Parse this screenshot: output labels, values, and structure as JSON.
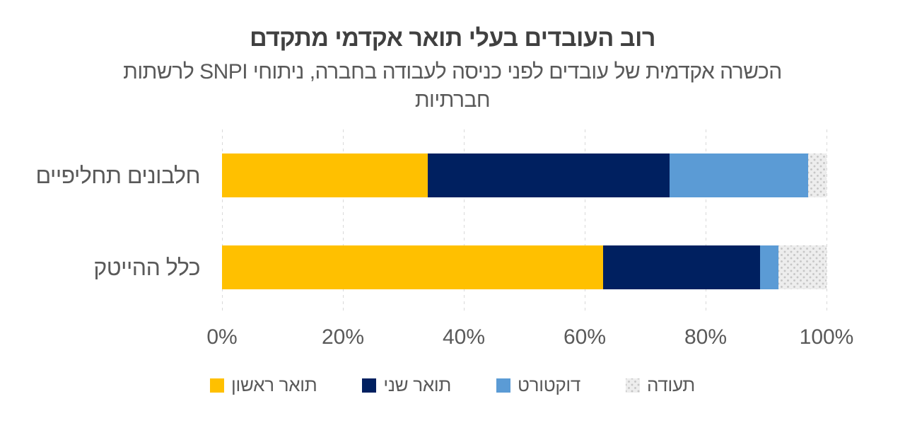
{
  "title": "רוב העובדים בעלי תואר אקדמי מתקדם",
  "subtitle": "הכשרה אקדמית של עובדים לפני כניסה לעבודה בחברה, ניתוחי SNPI לרשתות חברתיות",
  "chart_data": {
    "type": "bar",
    "orientation": "horizontal",
    "stacked": true,
    "unit": "%",
    "categories": [
      "חלבונים תחליפיים",
      "כלל ההייטק"
    ],
    "series": [
      {
        "name": "תואר ראשון",
        "color": "#FFC000",
        "pattern": "solid",
        "values": [
          34,
          63
        ]
      },
      {
        "name": "תואר שני",
        "color": "#002060",
        "pattern": "solid",
        "values": [
          40,
          26
        ]
      },
      {
        "name": "דוקטורט",
        "color": "#5B9BD5",
        "pattern": "solid",
        "values": [
          23,
          3
        ]
      },
      {
        "name": "תעודה",
        "color": "#EDEDED",
        "pattern": "dots",
        "dot_color": "#C6C6C6",
        "values": [
          3,
          8
        ]
      }
    ],
    "x_ticks": [
      "0%",
      "20%",
      "40%",
      "60%",
      "80%",
      "100%"
    ],
    "xlim": [
      0,
      100
    ],
    "grid": "vertical-dashed",
    "legend_position": "bottom"
  },
  "colors": {
    "background": "#FFFFFF",
    "title_text": "#404040",
    "body_text": "#595959",
    "gridline": "#D9D9D9"
  }
}
